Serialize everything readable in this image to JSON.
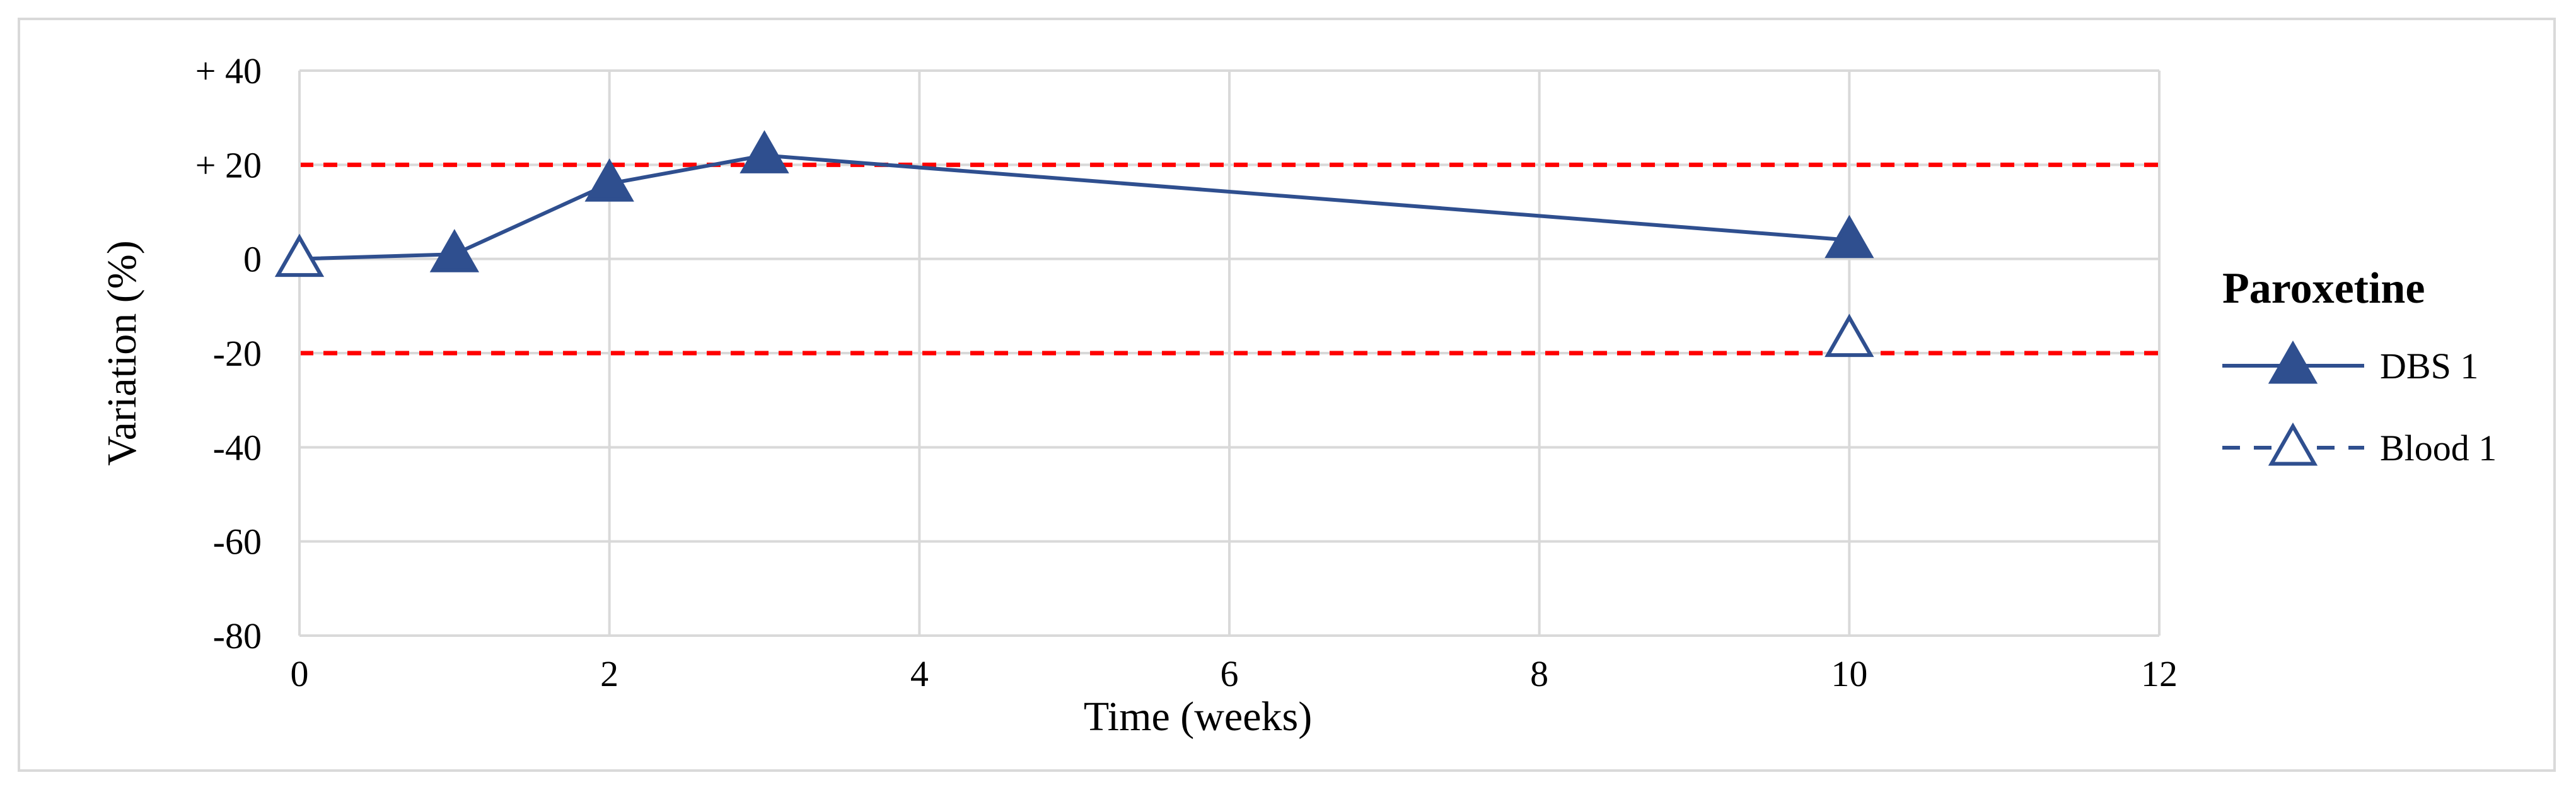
{
  "chart_data": {
    "type": "line",
    "xlabel": "Time (weeks)",
    "ylabel": "Variation (%)",
    "xlim": [
      0,
      12
    ],
    "ylim": [
      -80,
      40
    ],
    "x_ticks": [
      0,
      2,
      4,
      6,
      8,
      10,
      12
    ],
    "y_ticks": [
      {
        "value": 40,
        "label": "+ 40"
      },
      {
        "value": 20,
        "label": "+ 20"
      },
      {
        "value": 0,
        "label": "0"
      },
      {
        "value": -20,
        "label": "-20"
      },
      {
        "value": -40,
        "label": "-40"
      },
      {
        "value": -60,
        "label": "-60"
      },
      {
        "value": -80,
        "label": "-80"
      }
    ],
    "grid": true,
    "reference_lines": [
      {
        "y": 20,
        "color": "#ff0000",
        "style": "dashed"
      },
      {
        "y": -20,
        "color": "#ff0000",
        "style": "dashed"
      }
    ],
    "legend": {
      "title": "Paroxetine",
      "placement": "right"
    },
    "series": [
      {
        "name": "DBS 1",
        "color": "#2f4f8f",
        "line": "solid",
        "marker": "filled-triangle",
        "points": [
          {
            "x": 1,
            "y": 1
          },
          {
            "x": 2,
            "y": 16
          },
          {
            "x": 3,
            "y": 22
          },
          {
            "x": 10,
            "y": 4
          }
        ]
      },
      {
        "name": "Blood 1",
        "color": "#2f4f8f",
        "line": "dashed",
        "marker": "open-triangle",
        "points": [
          {
            "x": 0,
            "y": 0
          },
          {
            "x": 10,
            "y": -17
          }
        ]
      }
    ],
    "line_connections": [
      {
        "series": "DBS 1",
        "from": {
          "x": 0,
          "y": 0
        },
        "note_text": ""
      }
    ]
  }
}
